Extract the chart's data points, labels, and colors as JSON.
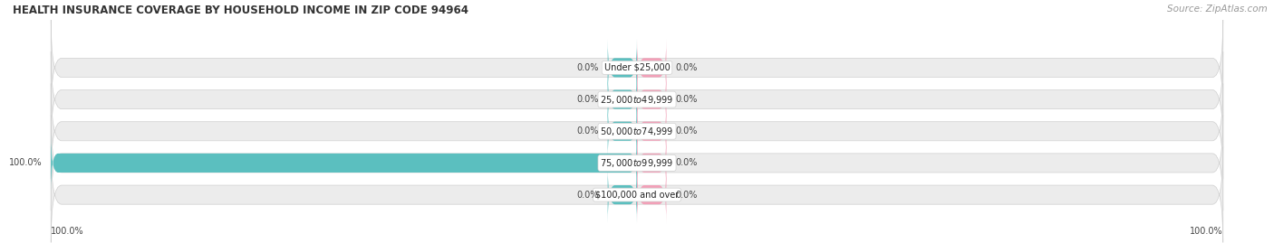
{
  "title": "HEALTH INSURANCE COVERAGE BY HOUSEHOLD INCOME IN ZIP CODE 94964",
  "source": "Source: ZipAtlas.com",
  "categories": [
    "Under $25,000",
    "$25,000 to $49,999",
    "$50,000 to $74,999",
    "$75,000 to $99,999",
    "$100,000 and over"
  ],
  "with_coverage": [
    0.0,
    0.0,
    0.0,
    100.0,
    0.0
  ],
  "without_coverage": [
    0.0,
    0.0,
    0.0,
    0.0,
    0.0
  ],
  "color_with": "#5bbfbf",
  "color_without": "#f2a0b8",
  "bar_bg_color": "#ececec",
  "bar_border_color": "#d0d0d0",
  "figsize": [
    14.06,
    2.69
  ],
  "dpi": 100,
  "title_fontsize": 8.5,
  "label_fontsize": 7.0,
  "source_fontsize": 7.5,
  "legend_fontsize": 7.5,
  "category_fontsize": 7.0,
  "bottom_tick_label_left": "100.0%",
  "bottom_tick_label_right": "100.0%"
}
